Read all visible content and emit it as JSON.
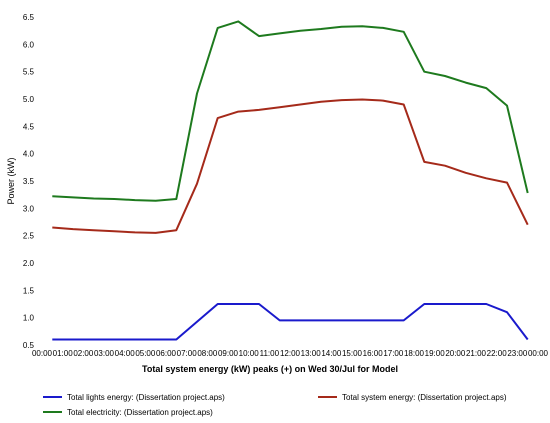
{
  "chart_data": {
    "type": "line",
    "title": "Total system energy (kW) peaks (+) on Wed 30/Jul for Model",
    "xlabel": "",
    "ylabel": "Power (kW)",
    "x": [
      "00:00",
      "01:00",
      "02:00",
      "03:00",
      "04:00",
      "05:00",
      "06:00",
      "07:00",
      "08:00",
      "09:00",
      "10:00",
      "11:00",
      "12:00",
      "13:00",
      "14:00",
      "15:00",
      "16:00",
      "17:00",
      "18:00",
      "19:00",
      "20:00",
      "21:00",
      "22:00",
      "23:00",
      "00:00"
    ],
    "ylim": [
      0.5,
      6.5
    ],
    "yticks": [
      "0.5",
      "1.0",
      "1.5",
      "2.0",
      "2.5",
      "3.0",
      "3.5",
      "4.0",
      "4.5",
      "5.0",
      "5.5",
      "6.0",
      "6.5"
    ],
    "grid": false,
    "legend_position": "bottom",
    "series": [
      {
        "name": "Total lights energy:  (Dissertation project.aps)",
        "color": "#1a1acc",
        "points": [
          [
            0.5,
            0.6
          ],
          [
            6.5,
            0.6
          ],
          [
            8.5,
            1.25
          ],
          [
            10.5,
            1.25
          ],
          [
            11.5,
            0.95
          ],
          [
            17.5,
            0.95
          ],
          [
            18.5,
            1.25
          ],
          [
            21.5,
            1.25
          ],
          [
            22.5,
            1.1
          ],
          [
            23.5,
            0.6
          ]
        ]
      },
      {
        "name": "Total system energy:  (Dissertation project.aps)",
        "color": "#a52a1a",
        "points": [
          [
            0.5,
            2.65
          ],
          [
            1.5,
            2.62
          ],
          [
            2.5,
            2.6
          ],
          [
            3.5,
            2.58
          ],
          [
            4.5,
            2.56
          ],
          [
            5.5,
            2.55
          ],
          [
            6.5,
            2.6
          ],
          [
            7.5,
            3.45
          ],
          [
            8.5,
            4.65
          ],
          [
            9.5,
            4.77
          ],
          [
            10.5,
            4.8
          ],
          [
            11.5,
            4.85
          ],
          [
            12.5,
            4.9
          ],
          [
            13.5,
            4.95
          ],
          [
            14.5,
            4.98
          ],
          [
            15.5,
            4.99
          ],
          [
            16.5,
            4.97
          ],
          [
            17.5,
            4.9
          ],
          [
            18.5,
            3.85
          ],
          [
            19.5,
            3.78
          ],
          [
            20.5,
            3.65
          ],
          [
            21.5,
            3.55
          ],
          [
            22.5,
            3.47
          ],
          [
            23.5,
            2.7
          ]
        ]
      },
      {
        "name": "Total electricity:  (Dissertation project.aps)",
        "color": "#1e7a1e",
        "points": [
          [
            0.5,
            3.22
          ],
          [
            1.5,
            3.2
          ],
          [
            2.5,
            3.18
          ],
          [
            3.5,
            3.17
          ],
          [
            4.5,
            3.15
          ],
          [
            5.5,
            3.14
          ],
          [
            6.5,
            3.17
          ],
          [
            7.5,
            5.1
          ],
          [
            8.5,
            6.3
          ],
          [
            9.5,
            6.42
          ],
          [
            10.5,
            6.15
          ],
          [
            11.5,
            6.2
          ],
          [
            12.5,
            6.25
          ],
          [
            13.5,
            6.28
          ],
          [
            14.5,
            6.32
          ],
          [
            15.5,
            6.33
          ],
          [
            16.5,
            6.3
          ],
          [
            17.5,
            6.23
          ],
          [
            18.5,
            5.5
          ],
          [
            19.5,
            5.42
          ],
          [
            20.5,
            5.3
          ],
          [
            21.5,
            5.2
          ],
          [
            22.5,
            4.88
          ],
          [
            23.5,
            3.28
          ]
        ]
      }
    ]
  }
}
